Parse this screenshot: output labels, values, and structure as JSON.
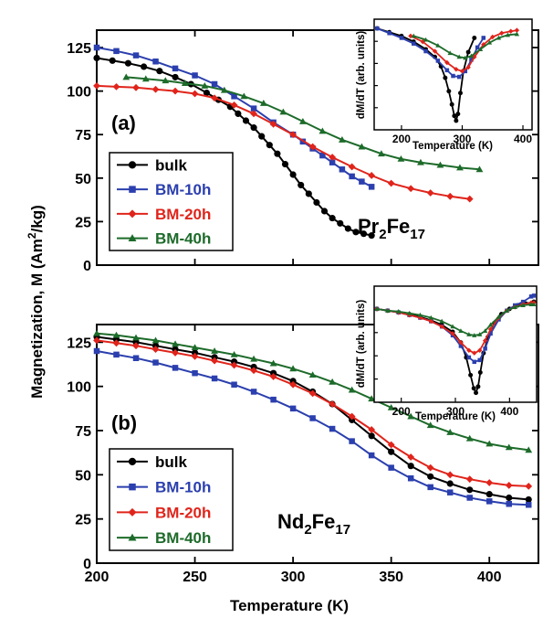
{
  "figure": {
    "ylabel": "Magnetization, M",
    "ylabel_unit_prefix": "(Am",
    "ylabel_unit_sup": "2",
    "ylabel_unit_suffix": "/kg)",
    "xlabel": "Temperature (K)"
  },
  "colors": {
    "bulk": "#000000",
    "BM-10h": "#2b3fae",
    "BM-20h": "#e0241b",
    "BM-40h": "#1d6b2a"
  },
  "chart_data": [
    {
      "type": "line",
      "panel": "a",
      "panel_label": "(a)",
      "compound_base": "Pr",
      "compound_sub1": "2",
      "compound_mid": "Fe",
      "compound_sub2": "17",
      "xlim": [
        200,
        425
      ],
      "ylim": [
        0,
        135
      ],
      "xticks": [
        200,
        250,
        300,
        350,
        400
      ],
      "yticks": [
        0,
        25,
        50,
        75,
        100,
        125
      ],
      "xlabel": "",
      "ylabel": "",
      "legend_position": "bottom-left",
      "series": [
        {
          "name": "bulk",
          "color": "#000000",
          "marker": "circle",
          "x": [
            200,
            208,
            216,
            224,
            232,
            240,
            248,
            256,
            262,
            268,
            272,
            276,
            280,
            284,
            288,
            292,
            296,
            300,
            304,
            308,
            312,
            316,
            320,
            324,
            328,
            332,
            336,
            340
          ],
          "y": [
            119,
            117.5,
            116,
            114,
            111.5,
            108,
            104,
            99,
            95,
            91,
            87,
            83,
            79,
            74,
            69,
            64,
            58,
            52,
            46,
            41,
            36,
            31,
            27,
            24,
            21,
            19,
            18,
            17
          ]
        },
        {
          "name": "BM-10h",
          "color": "#2b3fae",
          "marker": "square",
          "x": [
            200,
            210,
            220,
            230,
            240,
            250,
            260,
            270,
            280,
            290,
            300,
            305,
            310,
            315,
            320,
            325,
            330,
            335,
            340
          ],
          "y": [
            125,
            123,
            120.5,
            117,
            113,
            109,
            104,
            97,
            90,
            82,
            75,
            71,
            67,
            63,
            59,
            55,
            51,
            48,
            45
          ]
        },
        {
          "name": "BM-20h",
          "color": "#e0241b",
          "marker": "diamond",
          "x": [
            200,
            210,
            220,
            230,
            240,
            250,
            260,
            270,
            280,
            290,
            300,
            310,
            320,
            330,
            340,
            350,
            360,
            370,
            380,
            390
          ],
          "y": [
            103,
            102.5,
            102,
            101,
            100,
            98.5,
            96,
            92,
            87,
            81,
            75,
            68,
            62,
            56.5,
            51.5,
            47,
            44,
            41.5,
            39.5,
            38
          ]
        },
        {
          "name": "BM-40h",
          "color": "#1d6b2a",
          "marker": "triangle",
          "x": [
            215,
            225,
            235,
            245,
            255,
            265,
            275,
            285,
            295,
            305,
            315,
            325,
            335,
            345,
            355,
            365,
            375,
            385,
            395
          ],
          "y": [
            108,
            107,
            106,
            104.5,
            103,
            100.5,
            97,
            93,
            88,
            82.5,
            77,
            72,
            68,
            64,
            61,
            59,
            57.5,
            56,
            55
          ]
        }
      ],
      "inset": {
        "type": "line",
        "xlabel": "Temperature (K)",
        "ylabel": "dM/dT (arb. units)",
        "xlim": [
          155,
          415
        ],
        "xticks": [
          200,
          300,
          400
        ],
        "series": [
          {
            "name": "bulk",
            "color": "#000000",
            "marker": "circle",
            "x": [
              160,
              180,
              200,
              220,
              240,
              255,
              265,
              272,
              278,
              283,
              287,
              290,
              293,
              297,
              302,
              310,
              320
            ],
            "y": [
              0.0,
              0.04,
              0.08,
              0.14,
              0.22,
              0.3,
              0.4,
              0.52,
              0.66,
              0.8,
              0.92,
              0.97,
              0.9,
              0.68,
              0.45,
              0.25,
              0.1
            ]
          },
          {
            "name": "BM-10h",
            "color": "#2b3fae",
            "marker": "square",
            "x": [
              160,
              180,
              200,
              220,
              240,
              260,
              275,
              285,
              295,
              305,
              315,
              325,
              335
            ],
            "y": [
              0.0,
              0.05,
              0.1,
              0.16,
              0.24,
              0.34,
              0.44,
              0.5,
              0.51,
              0.45,
              0.33,
              0.2,
              0.1
            ]
          },
          {
            "name": "BM-20h",
            "color": "#e0241b",
            "marker": "diamond",
            "x": [
              215,
              235,
              255,
              275,
              290,
              300,
              310,
              320,
              335,
              350,
              365,
              380,
              390
            ],
            "y": [
              0.08,
              0.14,
              0.24,
              0.36,
              0.43,
              0.45,
              0.41,
              0.3,
              0.17,
              0.09,
              0.05,
              0.03,
              0.02
            ]
          },
          {
            "name": "BM-40h",
            "color": "#1d6b2a",
            "marker": "triangle",
            "x": [
              220,
              240,
              260,
              280,
              295,
              305,
              315,
              330,
              345,
              360,
              375,
              390
            ],
            "y": [
              0.08,
              0.12,
              0.18,
              0.26,
              0.3,
              0.31,
              0.29,
              0.22,
              0.15,
              0.1,
              0.07,
              0.06
            ]
          }
        ]
      }
    },
    {
      "type": "line",
      "panel": "b",
      "panel_label": "(b)",
      "compound_base": "Nd",
      "compound_sub1": "2",
      "compound_mid": "Fe",
      "compound_sub2": "17",
      "xlim": [
        200,
        425
      ],
      "ylim": [
        0,
        135
      ],
      "xticks": [
        200,
        250,
        300,
        350,
        400
      ],
      "yticks": [
        0,
        25,
        50,
        75,
        100,
        125
      ],
      "xlabel": "Temperature (K)",
      "ylabel": "",
      "legend_position": "bottom-left",
      "series": [
        {
          "name": "bulk",
          "color": "#000000",
          "marker": "circle",
          "x": [
            200,
            210,
            220,
            230,
            240,
            250,
            260,
            270,
            280,
            290,
            300,
            310,
            320,
            330,
            340,
            350,
            360,
            370,
            380,
            390,
            400,
            410,
            420
          ],
          "y": [
            128,
            126.5,
            125,
            123,
            121,
            119,
            116.5,
            114,
            111,
            107.5,
            103,
            97,
            90,
            81,
            72,
            63,
            55,
            49,
            45,
            41.5,
            39,
            37,
            36
          ]
        },
        {
          "name": "BM-10h",
          "color": "#2b3fae",
          "marker": "square",
          "x": [
            200,
            210,
            220,
            230,
            240,
            250,
            260,
            270,
            280,
            290,
            300,
            310,
            320,
            330,
            340,
            350,
            360,
            370,
            380,
            390,
            400,
            410,
            420
          ],
          "y": [
            120,
            118,
            116,
            113.5,
            110.5,
            107.5,
            104.5,
            101,
            97,
            92.5,
            87.5,
            82,
            76,
            69,
            61,
            54,
            48,
            43,
            40,
            37,
            35,
            33.5,
            33
          ]
        },
        {
          "name": "BM-20h",
          "color": "#e0241b",
          "marker": "diamond",
          "x": [
            200,
            210,
            220,
            230,
            240,
            250,
            260,
            270,
            280,
            290,
            300,
            310,
            320,
            330,
            340,
            350,
            360,
            370,
            380,
            390,
            400,
            410,
            420
          ],
          "y": [
            126,
            124.5,
            123,
            121,
            119,
            117,
            114.5,
            112,
            109,
            105.5,
            101,
            96,
            90,
            83,
            75.5,
            67,
            60,
            54,
            50,
            47.5,
            45.5,
            44,
            43.5
          ]
        },
        {
          "name": "BM-40h",
          "color": "#1d6b2a",
          "marker": "triangle",
          "x": [
            200,
            210,
            220,
            230,
            240,
            250,
            260,
            270,
            280,
            290,
            300,
            310,
            320,
            330,
            340,
            350,
            360,
            370,
            380,
            390,
            400,
            410,
            420
          ],
          "y": [
            130,
            129,
            127.5,
            126,
            124,
            122,
            120,
            118,
            115.5,
            113,
            110,
            106.5,
            102.5,
            98,
            93,
            88,
            83,
            78,
            74,
            70.5,
            67.5,
            65.5,
            64
          ]
        }
      ],
      "inset": {
        "type": "line",
        "xlabel": "Temperature (K)",
        "ylabel": "dM/dT (arb. units)",
        "xlim": [
          150,
          450
        ],
        "xticks": [
          200,
          300,
          400
        ],
        "series": [
          {
            "name": "bulk",
            "color": "#000000",
            "marker": "circle",
            "x": [
              155,
              175,
              195,
              215,
              235,
              255,
              275,
              295,
              310,
              320,
              328,
              334,
              338,
              342,
              346,
              352,
              360,
              372,
              385,
              400,
              415,
              430,
              445
            ],
            "y": [
              0.0,
              0.02,
              0.04,
              0.06,
              0.09,
              0.13,
              0.18,
              0.26,
              0.38,
              0.55,
              0.75,
              0.9,
              0.95,
              0.88,
              0.72,
              0.5,
              0.32,
              0.16,
              0.06,
              0.0,
              -0.04,
              -0.06,
              -0.08
            ]
          },
          {
            "name": "BM-10h",
            "color": "#2b3fae",
            "marker": "square",
            "x": [
              155,
              175,
              195,
              215,
              235,
              255,
              275,
              295,
              310,
              325,
              335,
              345,
              355,
              365,
              380,
              395,
              410,
              425,
              440,
              445
            ],
            "y": [
              0.0,
              0.02,
              0.04,
              0.07,
              0.1,
              0.14,
              0.2,
              0.3,
              0.42,
              0.55,
              0.6,
              0.58,
              0.45,
              0.28,
              0.12,
              0.02,
              -0.04,
              -0.08,
              -0.14,
              -0.15
            ]
          },
          {
            "name": "BM-20h",
            "color": "#e0241b",
            "marker": "diamond",
            "x": [
              155,
              175,
              195,
              215,
              235,
              255,
              275,
              295,
              310,
              325,
              335,
              345,
              355,
              365,
              380,
              395,
              410,
              425,
              440,
              445
            ],
            "y": [
              0.0,
              0.02,
              0.04,
              0.07,
              0.1,
              0.14,
              0.2,
              0.28,
              0.38,
              0.47,
              0.5,
              0.47,
              0.36,
              0.23,
              0.1,
              0.02,
              -0.02,
              -0.05,
              -0.07,
              -0.07
            ]
          },
          {
            "name": "BM-40h",
            "color": "#1d6b2a",
            "marker": "triangle",
            "x": [
              155,
              175,
              195,
              215,
              235,
              255,
              275,
              295,
              310,
              325,
              335,
              345,
              355,
              365,
              380,
              395,
              410,
              425,
              440,
              445
            ],
            "y": [
              0.0,
              0.02,
              0.03,
              0.05,
              0.07,
              0.1,
              0.14,
              0.2,
              0.25,
              0.29,
              0.3,
              0.29,
              0.25,
              0.18,
              0.09,
              0.02,
              -0.02,
              -0.04,
              -0.05,
              -0.05
            ]
          }
        ]
      }
    }
  ]
}
